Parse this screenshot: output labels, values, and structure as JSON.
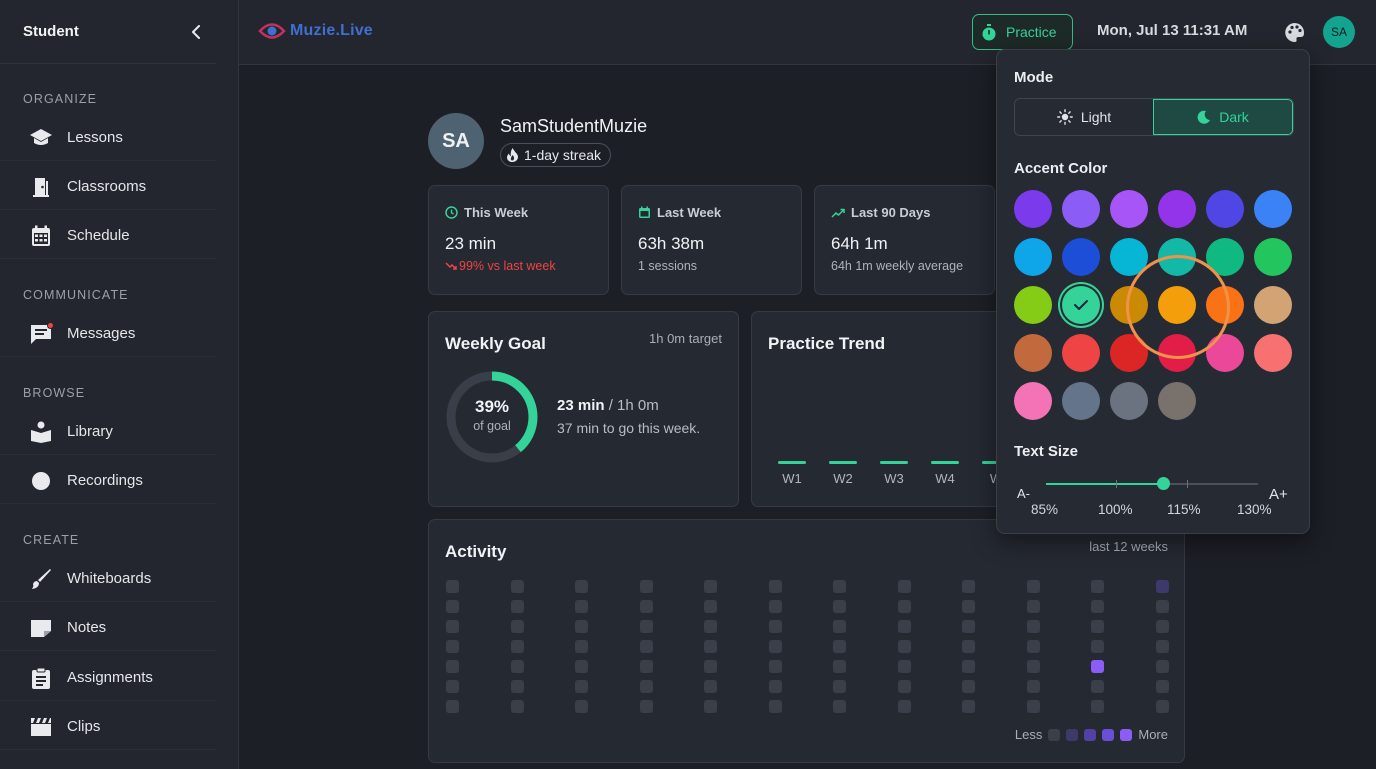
{
  "sidebar": {
    "title": "Student",
    "sections": {
      "organize": "ORGANIZE",
      "communicate": "COMMUNICATE",
      "browse": "BROWSE",
      "create": "CREATE"
    },
    "items": {
      "lessons": "Lessons",
      "classrooms": "Classrooms",
      "schedule": "Schedule",
      "messages": "Messages",
      "library": "Library",
      "recordings": "Recordings",
      "whiteboards": "Whiteboards",
      "notes": "Notes",
      "assignments": "Assignments",
      "clips": "Clips"
    }
  },
  "topbar": {
    "logo": "Muzie.Live",
    "practice_label": "Practice",
    "datetime": "Mon, Jul 13 11:31 AM",
    "avatar_initials": "SA"
  },
  "profile": {
    "initials": "SA",
    "username": "SamStudentMuzie",
    "streak": "1-day streak"
  },
  "stats": {
    "this_week": {
      "title": "This Week",
      "value": "23 min",
      "sub": "99% vs last week"
    },
    "last_week": {
      "title": "Last Week",
      "value": "63h 38m",
      "sub": "1 sessions"
    },
    "last_90": {
      "title": "Last 90 Days",
      "value": "64h 1m",
      "sub": "64h 1m weekly average"
    }
  },
  "weekly_goal": {
    "title": "Weekly Goal",
    "target": "1h 0m target",
    "percent_label": "39%",
    "percent": 0.39,
    "of_goal": "of goal",
    "progress_value": "23 min",
    "progress_rest": " / 1h 0m",
    "remaining": "37 min to go this week."
  },
  "practice_trend": {
    "title": "Practice Trend",
    "labels": [
      "W1",
      "W2",
      "W3",
      "W4",
      "W"
    ]
  },
  "activity": {
    "title": "Activity",
    "range": "last 12 weeks",
    "legend_less": "Less",
    "legend_more": "More",
    "levels": [
      "#3b3f4a",
      "#3d3a6b",
      "#5241a3",
      "#6a4fd6",
      "#8b5cf6"
    ]
  },
  "theme_popover": {
    "mode_title": "Mode",
    "light": "Light",
    "dark": "Dark",
    "accent_title": "Accent Color",
    "text_size_title": "Text Size",
    "a_minus": "A-",
    "a_plus": "A+",
    "sizes": [
      "85%",
      "100%",
      "115%",
      "130%"
    ],
    "selected_size": "115%",
    "swatches": [
      "#7c3aed",
      "#8b5cf6",
      "#a855f7",
      "#9333ea",
      "#4f46e5",
      "#3b82f6",
      "#0ea5e9",
      "#1d4ed8",
      "#06b6d4",
      "#14b8a6",
      "#10b981",
      "#22c55e",
      "#84cc16",
      "#34d399",
      "#ca8a04",
      "#f59e0b",
      "#f97316",
      "#d4a373",
      "#c2693e",
      "#ef4444",
      "#dc2626",
      "#e11d48",
      "#ec4899",
      "#f87171",
      "#f472b6",
      "#64748b",
      "#6b7280",
      "#78716c"
    ]
  },
  "colors": {
    "accent": "#34d399",
    "negative": "#ef4444",
    "activity_high": "#8b5cf6"
  }
}
